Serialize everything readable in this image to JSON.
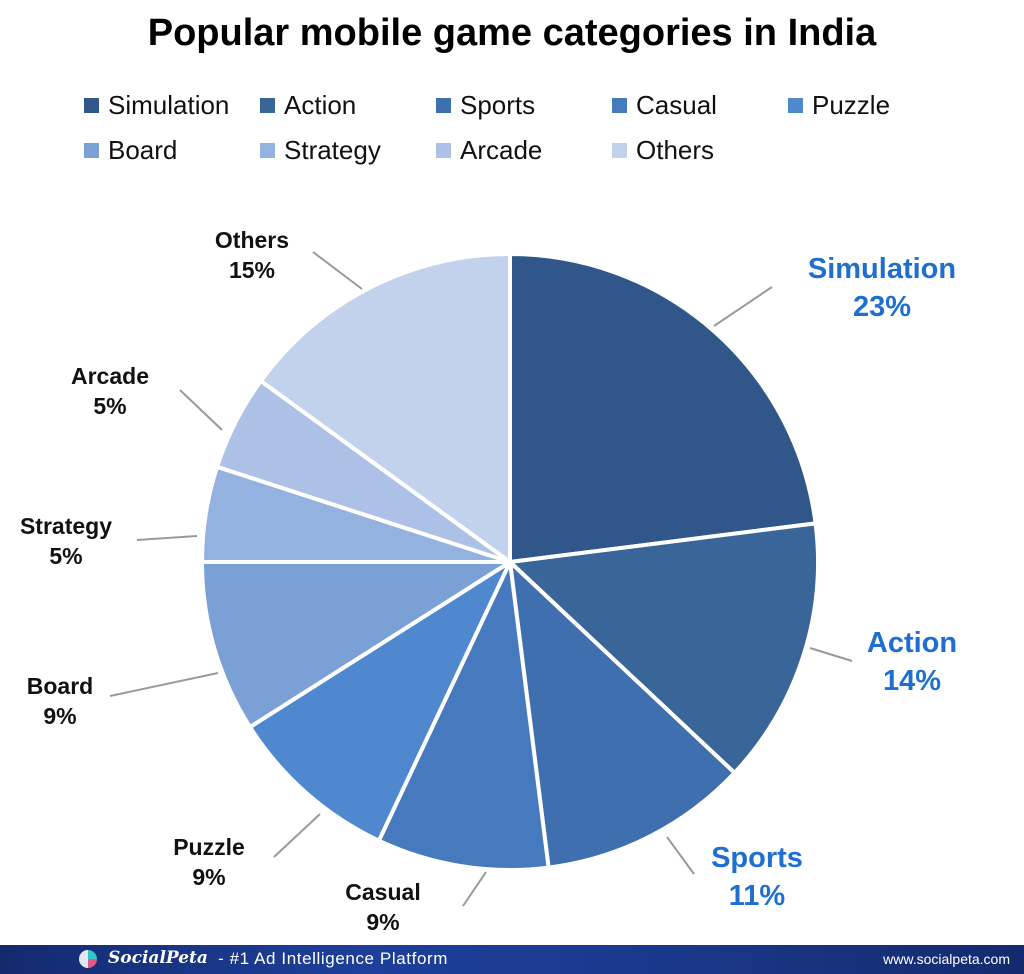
{
  "chart_data": {
    "type": "pie",
    "title": "Popular mobile game categories in India",
    "legend_position": "top",
    "slices": [
      {
        "label": "Simulation",
        "value": 23,
        "pct_label": "23%",
        "color": "#31578a",
        "label_color": "#1f6fd0"
      },
      {
        "label": "Action",
        "value": 14,
        "pct_label": "14%",
        "color": "#3a6598",
        "label_color": "#1f6fd0"
      },
      {
        "label": "Sports",
        "value": 11,
        "pct_label": "11%",
        "color": "#3f6fae",
        "label_color": "#1f6fd0"
      },
      {
        "label": "Casual",
        "value": 9,
        "pct_label": "9%",
        "color": "#4679bd",
        "label_color": "#111111"
      },
      {
        "label": "Puzzle",
        "value": 9,
        "pct_label": "9%",
        "color": "#4f88cf",
        "label_color": "#111111"
      },
      {
        "label": "Board",
        "value": 9,
        "pct_label": "9%",
        "color": "#7aa0d6",
        "label_color": "#111111"
      },
      {
        "label": "Strategy",
        "value": 5,
        "pct_label": "5%",
        "color": "#94b2e0",
        "label_color": "#111111"
      },
      {
        "label": "Arcade",
        "value": 5,
        "pct_label": "5%",
        "color": "#adc1e6",
        "label_color": "#111111"
      },
      {
        "label": "Others",
        "value": 15,
        "pct_label": "15%",
        "color": "#c3d2ec",
        "label_color": "#111111"
      }
    ]
  },
  "footer": {
    "brand": "SocialPeta",
    "tagline": "- #1 Ad Intelligence Platform",
    "url": "www.socialpeta.com"
  }
}
